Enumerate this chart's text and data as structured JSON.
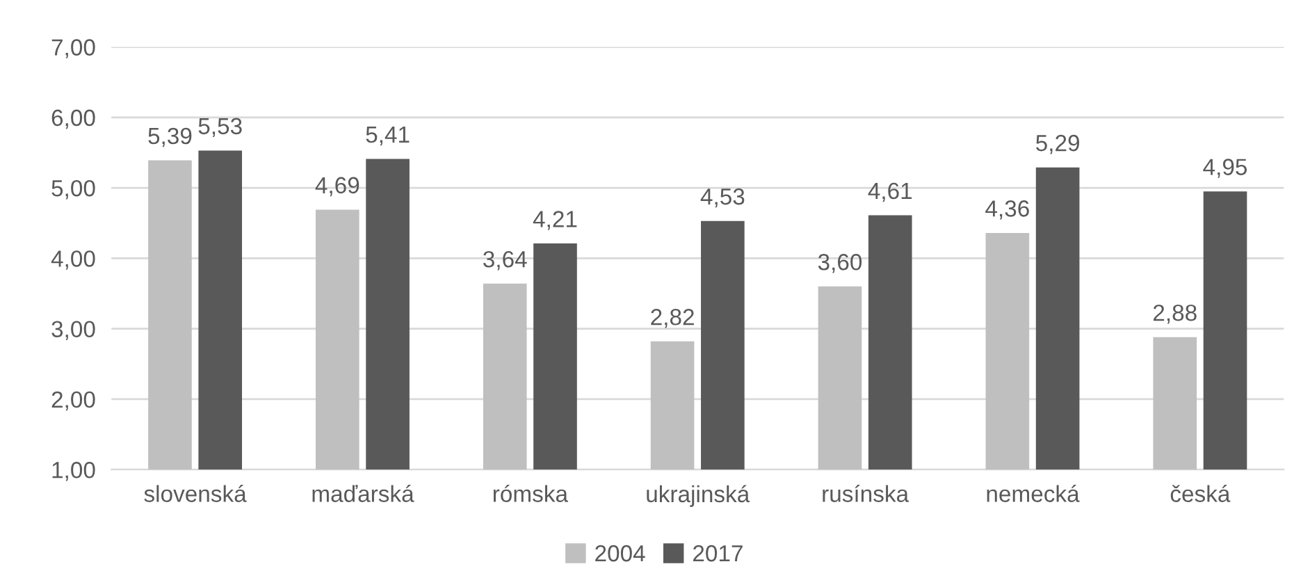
{
  "chart_data": {
    "type": "bar",
    "categories": [
      "slovenská",
      "maďarská",
      "rómska",
      "ukrajinská",
      "rusínska",
      "nemecká",
      "česká"
    ],
    "series": [
      {
        "name": "2004",
        "color": "#bfbfbf",
        "values": [
          5.39,
          4.69,
          3.64,
          2.82,
          3.6,
          4.36,
          2.88
        ],
        "value_labels": [
          "5,39",
          "4,69",
          "3,64",
          "2,82",
          "3,60",
          "4,36",
          "2,88"
        ]
      },
      {
        "name": "2017",
        "color": "#595959",
        "values": [
          5.53,
          5.41,
          4.21,
          4.53,
          4.61,
          5.29,
          4.95
        ],
        "value_labels": [
          "5,53",
          "5,41",
          "4,21",
          "4,53",
          "4,61",
          "5,29",
          "4,95"
        ]
      }
    ],
    "ylim": [
      1,
      7
    ],
    "yticks": [
      {
        "value": 1,
        "label": "1,00"
      },
      {
        "value": 2,
        "label": "2,00"
      },
      {
        "value": 3,
        "label": "3,00"
      },
      {
        "value": 4,
        "label": "4,00"
      },
      {
        "value": 5,
        "label": "5,00"
      },
      {
        "value": 6,
        "label": "6,00"
      },
      {
        "value": 7,
        "label": "7,00"
      }
    ],
    "grid": "y",
    "legend": "bottom"
  }
}
